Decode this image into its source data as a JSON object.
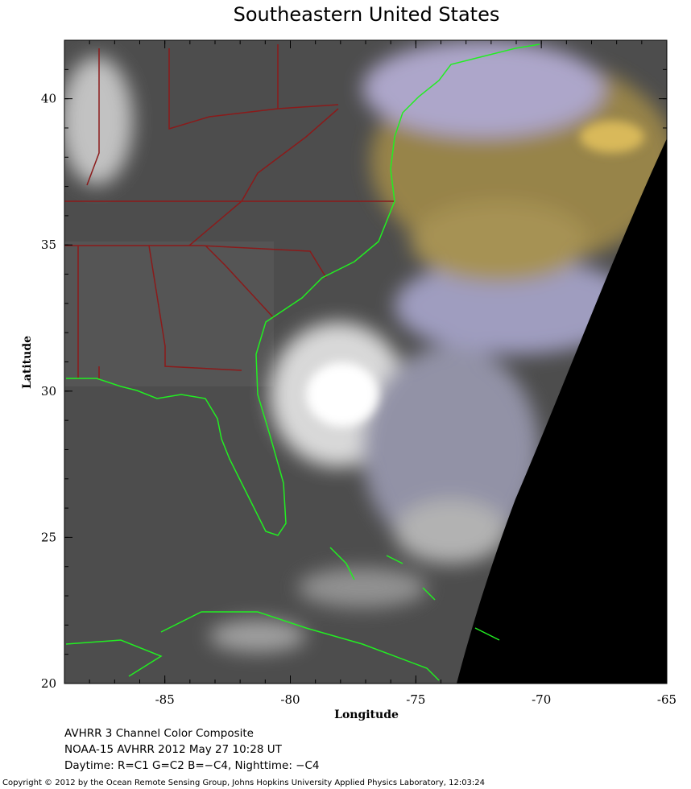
{
  "title": "Southeastern United States",
  "x_axis": {
    "label": "Longitude",
    "lim": [
      -89,
      -65
    ],
    "ticks": [
      -85,
      -80,
      -75,
      -70,
      -65
    ]
  },
  "y_axis": {
    "label": "Latitude",
    "lim": [
      20,
      42
    ],
    "ticks": [
      20,
      25,
      30,
      35,
      40
    ]
  },
  "caption": [
    "AVHRR 3 Channel Color Composite",
    "NOAA-15 AVHRR 2012 May 27 10:28 UT",
    "Daytime: R=C1 G=C2 B=−C4, Nighttime: −C4"
  ],
  "copyright": "Copyright © 2012 by the Ocean Remote Sensing Group, Johns Hopkins University Applied Physics Laboratory, 12:03:24"
}
